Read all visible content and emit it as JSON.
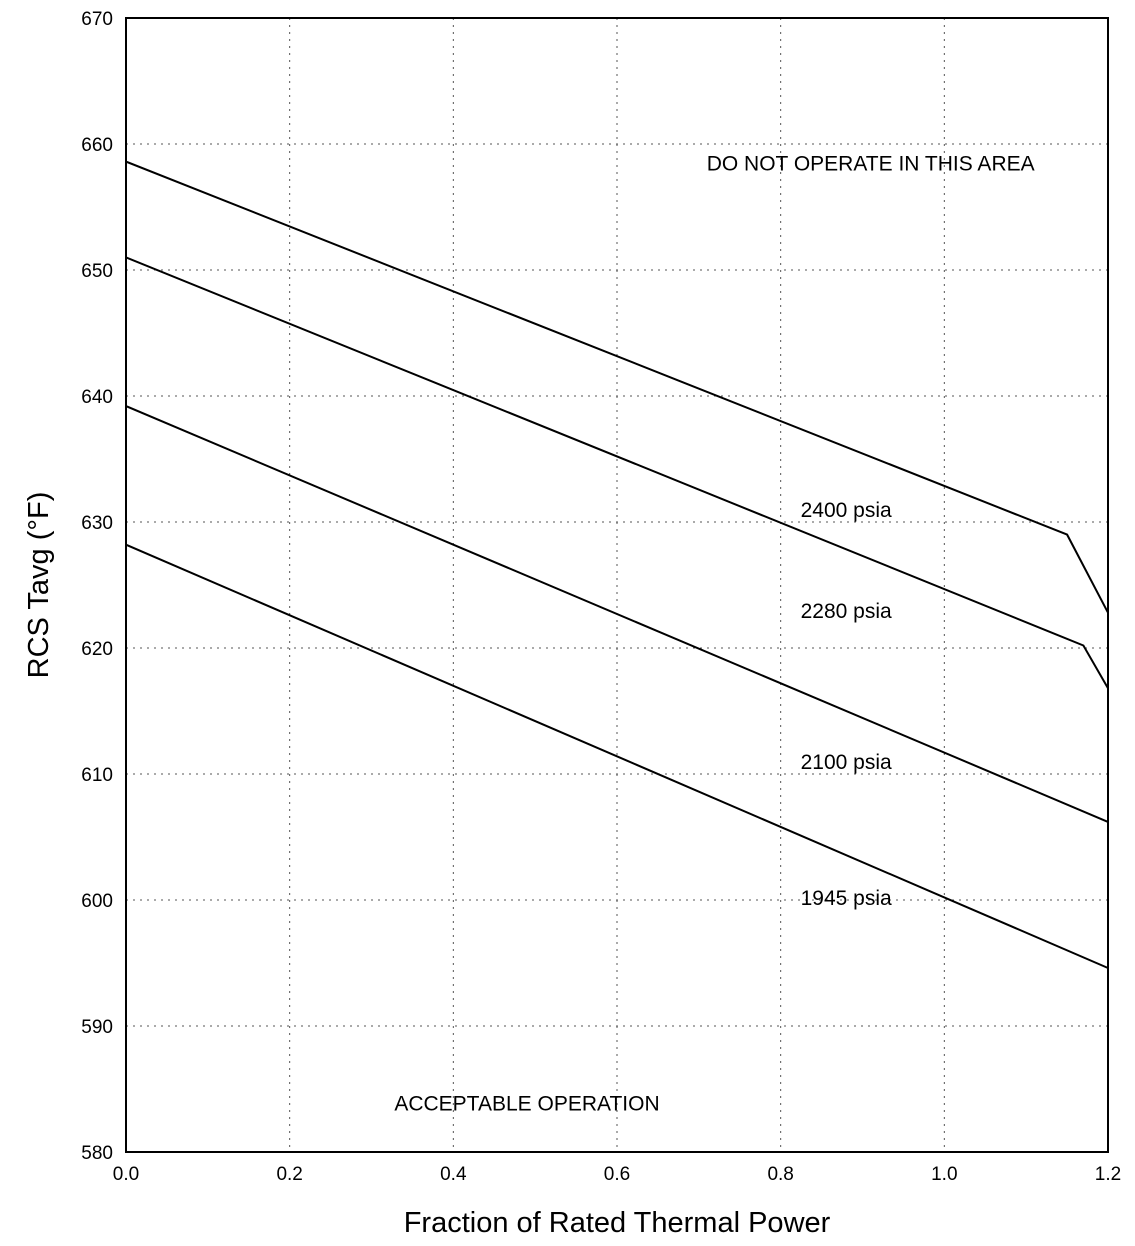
{
  "chart_data": {
    "type": "line",
    "title": "",
    "xlabel": "Fraction of Rated Thermal Power",
    "ylabel": "RCS Tavg (°F)",
    "xlim": [
      0.0,
      1.2
    ],
    "ylim": [
      580,
      670
    ],
    "xticks": [
      "0.0",
      "0.2",
      "0.4",
      "0.6",
      "0.8",
      "1.0",
      "1.2"
    ],
    "yticks": [
      "580",
      "590",
      "600",
      "610",
      "620",
      "630",
      "640",
      "650",
      "660",
      "670"
    ],
    "grid": true,
    "series": [
      {
        "name": "2400 psia",
        "points": [
          [
            0.0,
            658.6
          ],
          [
            1.15,
            629.0
          ],
          [
            1.2,
            622.8
          ]
        ]
      },
      {
        "name": "2280 psia",
        "points": [
          [
            0.0,
            651.0
          ],
          [
            1.17,
            620.2
          ],
          [
            1.2,
            616.8
          ]
        ]
      },
      {
        "name": "2100 psia",
        "points": [
          [
            0.0,
            639.2
          ],
          [
            1.2,
            606.2
          ]
        ]
      },
      {
        "name": "1945 psia",
        "points": [
          [
            0.0,
            628.2
          ],
          [
            1.2,
            594.6
          ]
        ]
      }
    ],
    "annotations": [
      {
        "text": "DO NOT OPERATE IN THIS AREA",
        "x": 0.91,
        "y": 657.9
      },
      {
        "text": "2400 psia",
        "x": 0.88,
        "y": 630.4
      },
      {
        "text": "2280 psia",
        "x": 0.88,
        "y": 622.4
      },
      {
        "text": "2100 psia",
        "x": 0.88,
        "y": 610.4
      },
      {
        "text": "1945 psia",
        "x": 0.88,
        "y": 599.6
      },
      {
        "text": "ACCEPTABLE OPERATION",
        "x": 0.49,
        "y": 583.3
      }
    ]
  }
}
